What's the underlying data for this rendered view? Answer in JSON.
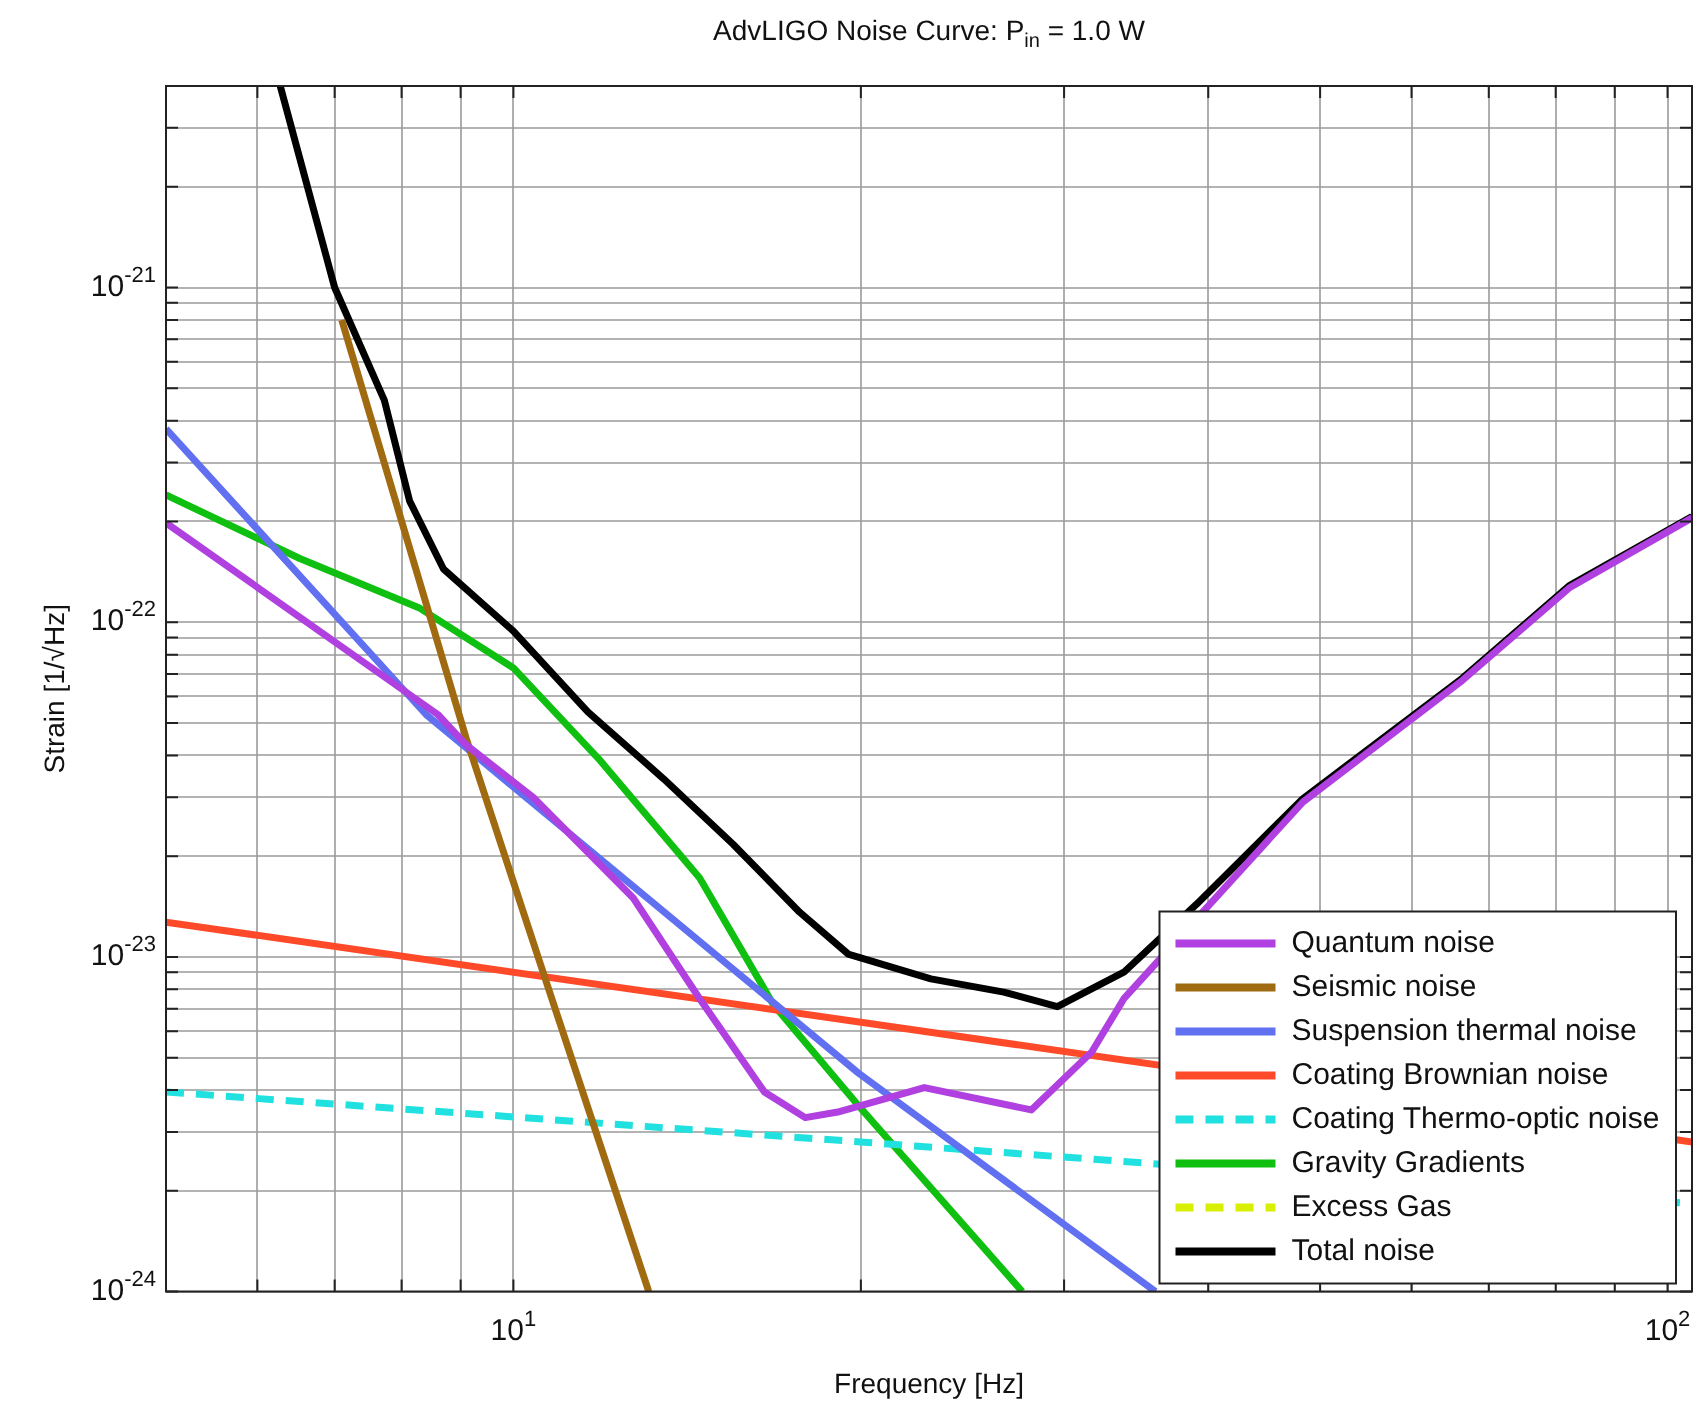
{
  "chart_data": {
    "type": "line",
    "title": "AdvLIGO Noise Curve: P$_{in}$ = 1.0 W",
    "xlabel": "Frequency [Hz]",
    "ylabel": "Strain [1/√Hz]",
    "log": "xy",
    "grid": true,
    "legend": "bottom right",
    "marker": "none",
    "xlim": [
      5,
      105
    ],
    "ylim": [
      1e-24,
      4e-21
    ],
    "xticks": [
      {
        "value": 6,
        "label": null
      },
      {
        "value": 7,
        "label": null
      },
      {
        "value": 8,
        "label": null
      },
      {
        "value": 9,
        "label": null
      },
      {
        "value": 10,
        "label": "10$^{1}$"
      },
      {
        "value": 20,
        "label": null
      },
      {
        "value": 30,
        "label": null
      },
      {
        "value": 40,
        "label": null
      },
      {
        "value": 50,
        "label": null
      },
      {
        "value": 60,
        "label": null
      },
      {
        "value": 70,
        "label": null
      },
      {
        "value": 80,
        "label": null
      },
      {
        "value": 90,
        "label": null
      },
      {
        "value": 100,
        "label": "10$^{2}$"
      }
    ],
    "yticks": [
      {
        "value": 1e-24,
        "label": "10$^{-24}$"
      },
      {
        "value": 2e-24,
        "label": null
      },
      {
        "value": 3e-24,
        "label": null
      },
      {
        "value": 4e-24,
        "label": null
      },
      {
        "value": 5e-24,
        "label": null
      },
      {
        "value": 6e-24,
        "label": null
      },
      {
        "value": 7e-24,
        "label": null
      },
      {
        "value": 8e-24,
        "label": null
      },
      {
        "value": 9e-24,
        "label": null
      },
      {
        "value": 1e-23,
        "label": "10$^{-23}$"
      },
      {
        "value": 2e-23,
        "label": null
      },
      {
        "value": 3e-23,
        "label": null
      },
      {
        "value": 4e-23,
        "label": null
      },
      {
        "value": 5e-23,
        "label": null
      },
      {
        "value": 6e-23,
        "label": null
      },
      {
        "value": 7e-23,
        "label": null
      },
      {
        "value": 8e-23,
        "label": null
      },
      {
        "value": 9e-23,
        "label": null
      },
      {
        "value": 1e-22,
        "label": "10$^{-22}$"
      },
      {
        "value": 2e-22,
        "label": null
      },
      {
        "value": 3e-22,
        "label": null
      },
      {
        "value": 4e-22,
        "label": null
      },
      {
        "value": 5e-22,
        "label": null
      },
      {
        "value": 6e-22,
        "label": null
      },
      {
        "value": 7e-22,
        "label": null
      },
      {
        "value": 8e-22,
        "label": null
      },
      {
        "value": 9e-22,
        "label": null
      },
      {
        "value": 1e-21,
        "label": "10$^{-21}$"
      },
      {
        "value": 2e-21,
        "label": null
      },
      {
        "value": 3e-21,
        "label": null
      },
      {
        "value": 4e-21,
        "label": null
      }
    ],
    "series": [
      {
        "name": "Quantum noise",
        "color": "#b040e0",
        "x": [
          5,
          8.6,
          9.1,
          10.4,
          12.7,
          14.5,
          16.5,
          17.9,
          19.1,
          22.7,
          28.1,
          31.7,
          33.8,
          48.3,
          66.4,
          82.3,
          105
        ],
        "values": [
          1.98e-22,
          5.3e-23,
          4.3e-23,
          3e-23,
          1.5e-23,
          7.5e-24,
          3.95e-24,
          3.31e-24,
          3.44e-24,
          4.07e-24,
          3.49e-24,
          5.2e-24,
          7.5e-24,
          2.9e-23,
          6.7e-23,
          1.27e-22,
          2.05e-22
        ]
      },
      {
        "name": "Seismic noise",
        "color": "#a06a10",
        "x": [
          7.1,
          9.1,
          10.65,
          13.1
        ],
        "values": [
          8e-22,
          4.5e-23,
          8.65e-24,
          1e-24
        ]
      },
      {
        "name": "Suspension thermal noise",
        "color": "#6070f0",
        "x": [
          5,
          8.4,
          19.9,
          36
        ],
        "values": [
          3.78e-22,
          5.3e-23,
          4.5e-24,
          1e-24
        ]
      },
      {
        "name": "Coating Brownian noise",
        "color": "#ff4a2a",
        "x": [
          5,
          105
        ],
        "values": [
          1.27e-23,
          2.8e-24
        ]
      },
      {
        "name": "Coating Thermo-optic noise",
        "color": "#20e0e0",
        "line_style": "dashed",
        "x": [
          5,
          20,
          105
        ],
        "values": [
          3.95e-24,
          2.8e-24,
          1.83e-24
        ]
      },
      {
        "name": "Gravity Gradients",
        "color": "#10c010",
        "x": [
          5,
          6.53,
          8.3,
          10,
          11.86,
          14.5,
          16.8,
          19.9,
          27.6
        ],
        "values": [
          2.4e-22,
          1.55e-22,
          1.1e-22,
          7.3e-23,
          3.9e-23,
          1.72e-23,
          7.2e-24,
          3.6e-24,
          1e-24
        ]
      },
      {
        "name": "Excess Gas",
        "color": "#d8f000",
        "line_style": "dashed"
      },
      {
        "name": "Total noise",
        "color": "#000000",
        "x": [
          6.28,
          7.0,
          7.73,
          8.13,
          8.7,
          10,
          11.6,
          13.5,
          15.5,
          17.7,
          19.5,
          23,
          26.6,
          29.6,
          33.8,
          39.1,
          48.3,
          66.4,
          82.3,
          105
        ],
        "values": [
          4e-21,
          1e-21,
          4.6e-22,
          2.3e-22,
          1.44e-22,
          9.4e-23,
          5.4e-23,
          3.4e-23,
          2.17e-23,
          1.36e-23,
          1.02e-23,
          8.6e-24,
          7.85e-24,
          7.1e-24,
          9e-24,
          1.44e-23,
          2.97e-23,
          6.8e-23,
          1.29e-22,
          2.07e-22
        ]
      }
    ]
  }
}
